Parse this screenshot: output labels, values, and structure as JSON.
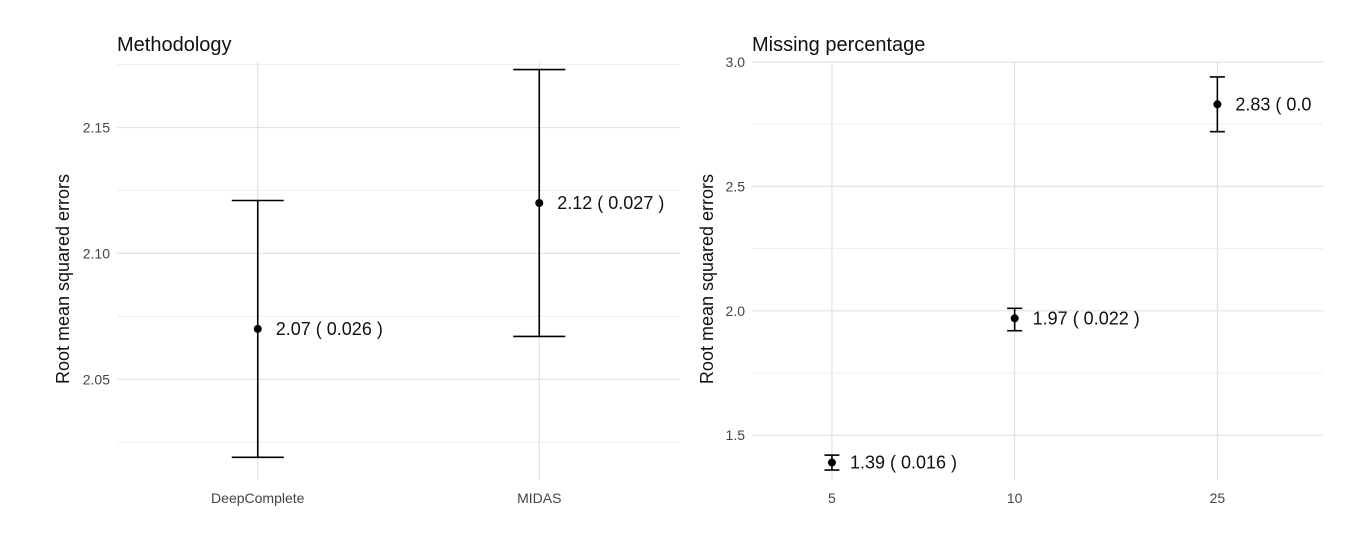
{
  "chart_data": [
    {
      "type": "scatter",
      "title": "Methodology",
      "xlabel": "",
      "ylabel": "Root mean squared errors",
      "categories": [
        "DeepComplete",
        "MIDAS"
      ],
      "values": [
        2.07,
        2.12
      ],
      "ci_lower": [
        2.019,
        2.067
      ],
      "ci_upper": [
        2.121,
        2.173
      ],
      "labels": [
        "2.07  ( 0.026 )",
        "2.12  ( 0.027 )"
      ],
      "ylim": [
        2.01,
        2.176
      ],
      "yticks": [
        2.05,
        2.1,
        2.15
      ],
      "ytick_labels": [
        "2.05",
        "2.10",
        "2.15"
      ],
      "grid": true,
      "legend": "none"
    },
    {
      "type": "scatter",
      "title": "Missing percentage",
      "xlabel": "",
      "ylabel": "Root mean squared errors",
      "categories": [
        "5",
        "10",
        "25"
      ],
      "values": [
        1.39,
        1.97,
        2.83
      ],
      "ci_lower": [
        1.36,
        1.92,
        2.72
      ],
      "ci_upper": [
        1.42,
        2.01,
        2.94
      ],
      "labels": [
        "1.39  ( 0.016 )",
        "1.97  ( 0.022 )",
        "2.83  ( 0.0"
      ],
      "ylim": [
        1.32,
        3.0
      ],
      "yticks": [
        1.5,
        2.0,
        2.5,
        3.0
      ],
      "ytick_labels": [
        "1.5",
        "2.0",
        "2.5",
        "3.0"
      ],
      "grid": true,
      "legend": "none"
    }
  ]
}
